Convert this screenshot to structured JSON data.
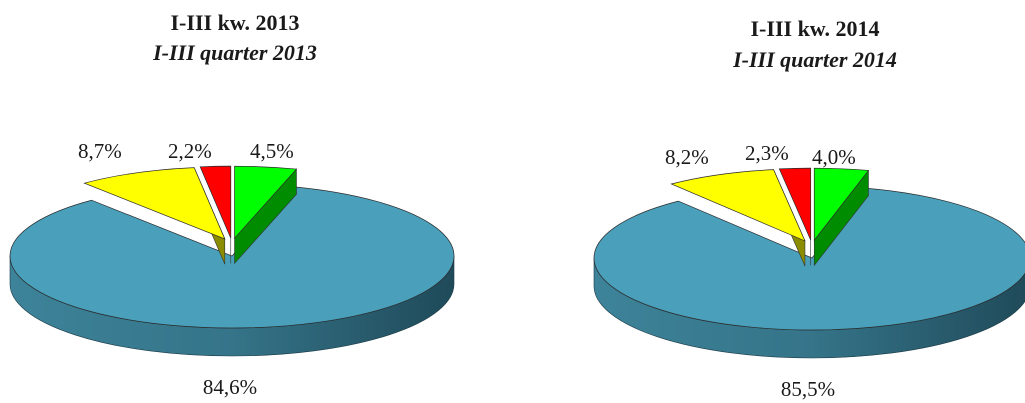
{
  "chart_data": [
    {
      "type": "pie",
      "title": "I-III kw. 2013",
      "subtitle": "I-III quarter 2013",
      "slices": [
        {
          "value": 84.6,
          "label": "84,6%",
          "color": "#4A9FBA",
          "exploded": false
        },
        {
          "value": 8.7,
          "label": "8,7%",
          "color": "#FFFF00",
          "exploded": true
        },
        {
          "value": 2.2,
          "label": "2,2%",
          "color": "#FF0000",
          "exploded": true
        },
        {
          "value": 4.5,
          "label": "4,5%",
          "color": "#00FF00",
          "exploded": true
        }
      ]
    },
    {
      "type": "pie",
      "title": "I-III kw. 2014",
      "subtitle": "I-III quarter 2014",
      "slices": [
        {
          "value": 85.5,
          "label": "85,5%",
          "color": "#4A9FBA",
          "exploded": false
        },
        {
          "value": 8.2,
          "label": "8,2%",
          "color": "#FFFF00",
          "exploded": true
        },
        {
          "value": 2.3,
          "label": "2,3%",
          "color": "#FF0000",
          "exploded": true
        },
        {
          "value": 4.0,
          "label": "4,0%",
          "color": "#00FF00",
          "exploded": true
        }
      ]
    }
  ]
}
